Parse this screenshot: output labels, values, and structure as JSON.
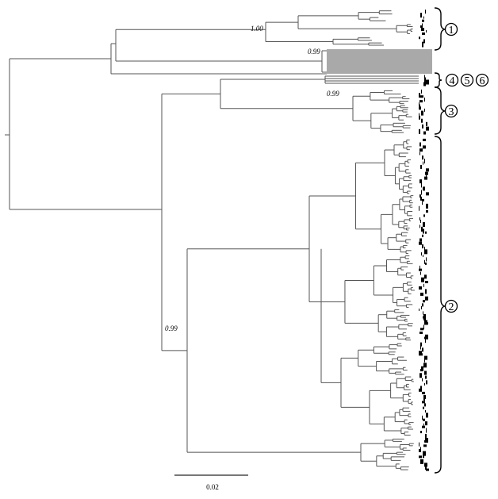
{
  "supports": {
    "clade1": "1.00",
    "grey_block": "0.99",
    "clade3": "0.99",
    "clade2": "0.99"
  },
  "clades": {
    "c1": "1",
    "c4": "4",
    "c5": "5",
    "c6": "6",
    "c3": "3",
    "c2": "2"
  },
  "scale_bar": {
    "label": "0.02",
    "value": 0.02
  },
  "colors": {
    "branch": "#555555",
    "highlight": "#a9a9a9",
    "tip": "#000000"
  }
}
